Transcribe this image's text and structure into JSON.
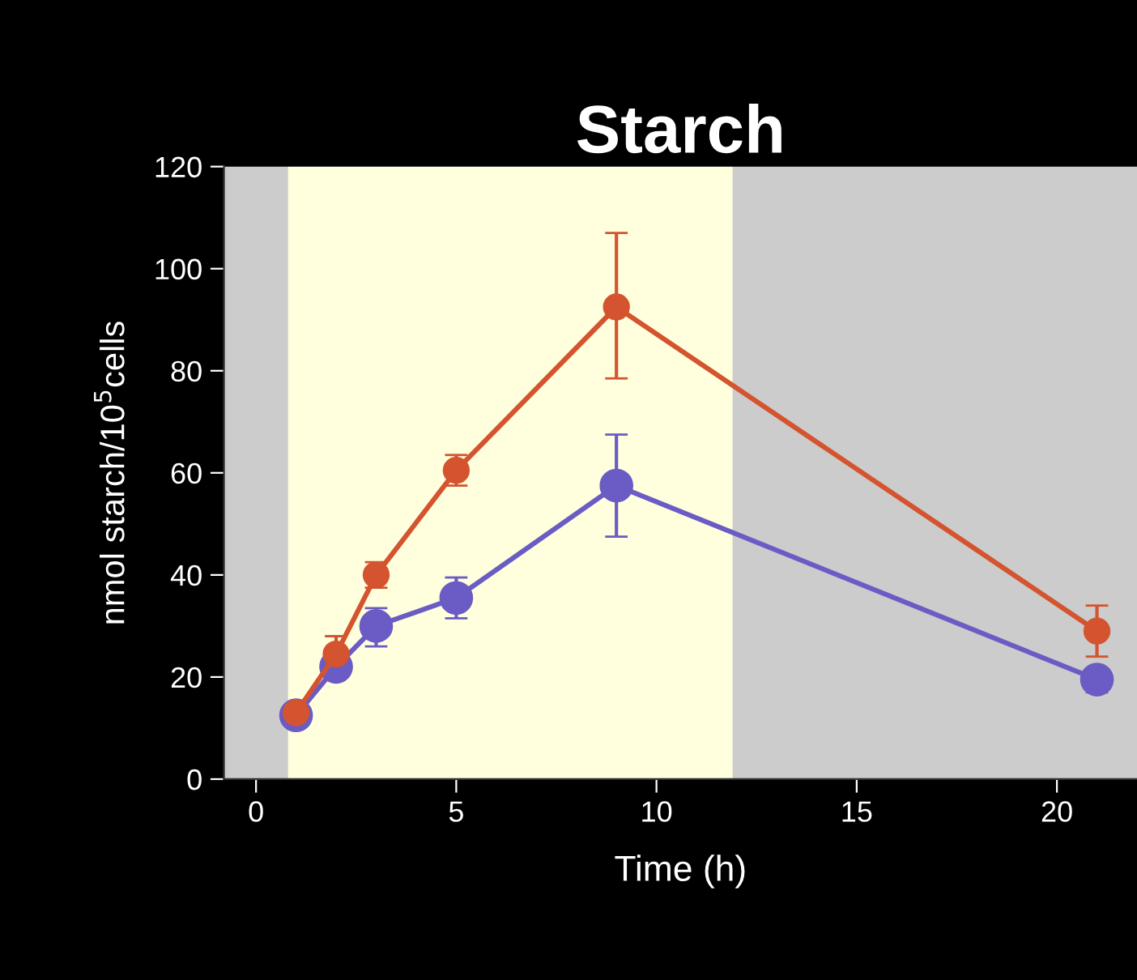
{
  "chart_data": {
    "type": "line",
    "title": "Starch",
    "xlabel": "Time (h)",
    "ylabel": "nmol starch/10$^{5}$cells",
    "xlim": [
      -0.8,
      22
    ],
    "xticks": [
      0,
      5,
      10,
      15,
      20
    ],
    "ylim": [
      0,
      120
    ],
    "yticks": [
      0,
      20,
      40,
      60,
      80,
      100,
      120
    ],
    "marker": "circle",
    "grid": false,
    "bands": [
      {
        "axis": "x",
        "from": 0.8,
        "to": 11.9,
        "color": "#ffffdd"
      }
    ],
    "series": [
      {
        "color": "#6a5cc4",
        "x": [
          1,
          2,
          3,
          5,
          9,
          21
        ],
        "values": [
          12.5,
          22,
          30,
          35.5,
          57.5,
          19.5
        ],
        "errors": [
          null,
          null,
          [
            26,
            33.5
          ],
          [
            31.5,
            39.5
          ],
          [
            47.5,
            67.5
          ],
          [
            17,
            19.5
          ]
        ]
      },
      {
        "color": "#d4542f",
        "x": [
          1,
          2,
          3,
          5,
          9,
          21
        ],
        "values": [
          13,
          24.5,
          40,
          60.5,
          92.5,
          29
        ],
        "errors": [
          null,
          [
            24.5,
            28
          ],
          [
            37.5,
            42.5
          ],
          [
            57.5,
            63.5
          ],
          [
            78.5,
            107
          ],
          [
            24,
            34
          ]
        ]
      }
    ]
  }
}
